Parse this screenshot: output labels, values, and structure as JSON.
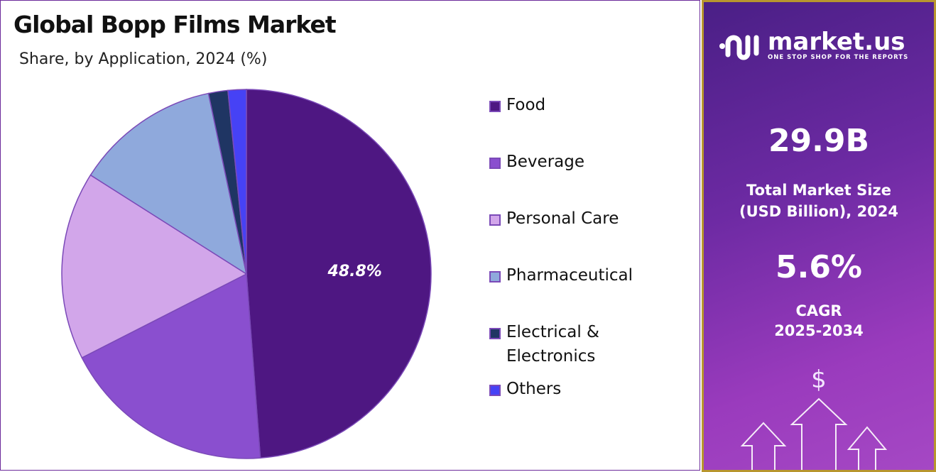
{
  "title": "Global Bopp Films Market",
  "subtitle": "Share, by Application, 2024 (%)",
  "chart_data": {
    "type": "pie",
    "title": "Global Bopp Films Market",
    "subtitle": "Share, by Application, 2024 (%)",
    "categories": [
      "Food",
      "Beverage",
      "Personal Care",
      "Pharmaceutical",
      "Electrical & Electronics",
      "Others"
    ],
    "values": [
      48.8,
      18.7,
      16.5,
      12.7,
      1.7,
      1.6
    ],
    "colors": [
      "#4e1782",
      "#8a4fcf",
      "#d2a6ea",
      "#8fa9dc",
      "#1f3563",
      "#4642f5"
    ],
    "data_labels": [
      "48.8%",
      "",
      "",
      "",
      "",
      ""
    ],
    "legend_position": "right"
  },
  "legend": [
    {
      "label": "Food"
    },
    {
      "label": "Beverage"
    },
    {
      "label": "Personal Care"
    },
    {
      "label": "Pharmaceutical"
    },
    {
      "label": "Electrical &",
      "label2": "Electronics"
    },
    {
      "label": "Others"
    }
  ],
  "sidebar": {
    "brand": "market.us",
    "tagline": "ONE STOP SHOP FOR THE REPORTS",
    "market_size": "29.9B",
    "market_size_label1": "Total Market Size",
    "market_size_label2": "(USD Billion), 2024",
    "cagr": "5.6%",
    "cagr_label1": "CAGR",
    "cagr_label2": "2025-2034",
    "dollar": "$"
  }
}
